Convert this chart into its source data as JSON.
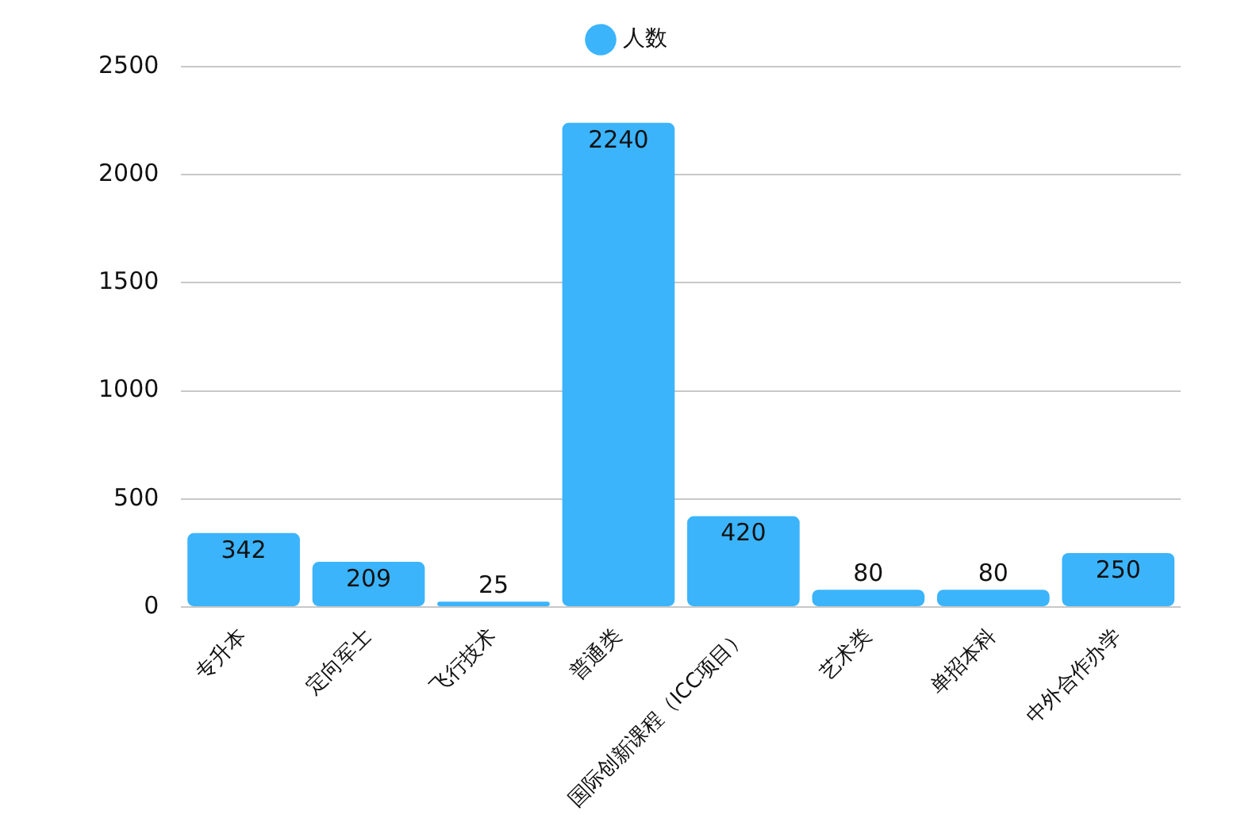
{
  "chart_data": {
    "type": "bar",
    "categories": [
      "专升本",
      "定向军士",
      "飞行技术",
      "普通类",
      "国际创新课程（ICC项目）",
      "艺术类",
      "单招本科",
      "中外合作办学"
    ],
    "series": [
      {
        "name": "人数",
        "color": "#3bb4fc",
        "values": [
          342,
          209,
          25,
          2240,
          420,
          80,
          80,
          250
        ]
      }
    ],
    "ylim": [
      0,
      2500
    ],
    "yticks": [
      0,
      500,
      1000,
      1500,
      2000,
      2500
    ],
    "grid": "y",
    "legend": "top",
    "data_labels": true
  }
}
